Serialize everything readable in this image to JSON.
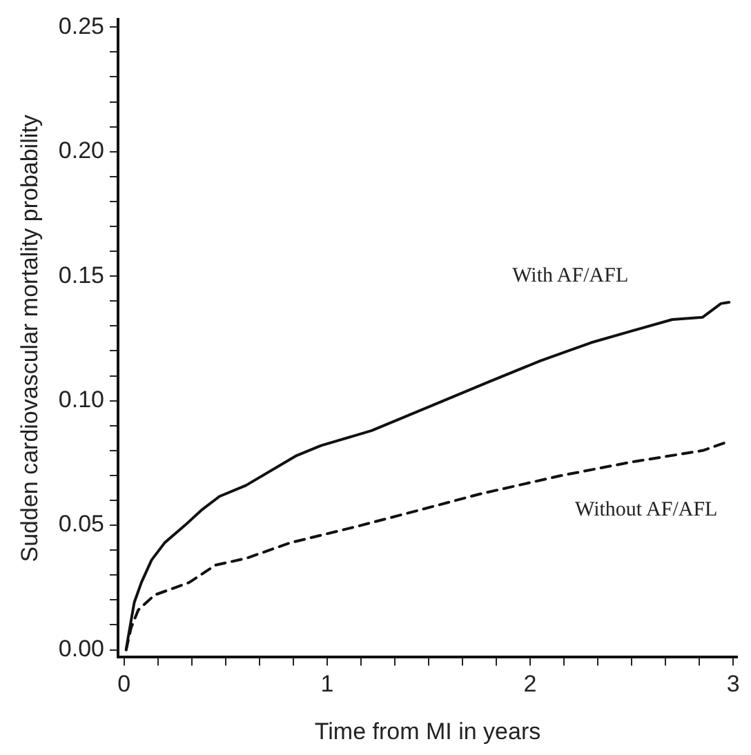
{
  "chart_data": {
    "type": "line",
    "xlabel": "Time from MI in years",
    "ylabel": "Sudden cardiovascular mortality probability",
    "xlim": [
      -0.03,
      3.02
    ],
    "ylim": [
      -0.003,
      0.253
    ],
    "xticks": [
      0,
      {
        "value": 0.1667,
        "label": null
      },
      {
        "value": 0.3333,
        "label": null
      },
      {
        "value": 0.5,
        "label": null
      },
      {
        "value": 0.6667,
        "label": null
      },
      {
        "value": 0.8333,
        "label": null
      },
      1,
      {
        "value": 1.1667,
        "label": null
      },
      {
        "value": 1.3333,
        "label": null
      },
      {
        "value": 1.5,
        "label": null
      },
      {
        "value": 1.6667,
        "label": null
      },
      {
        "value": 1.8333,
        "label": null
      },
      2,
      {
        "value": 2.1667,
        "label": null
      },
      {
        "value": 2.3333,
        "label": null
      },
      {
        "value": 2.5,
        "label": null
      },
      {
        "value": 2.6667,
        "label": null
      },
      {
        "value": 2.8333,
        "label": null
      },
      3
    ],
    "yticks": [
      {
        "value": 0,
        "label": "0.00"
      },
      {
        "value": 0.01,
        "label": null
      },
      {
        "value": 0.02,
        "label": null
      },
      {
        "value": 0.03,
        "label": null
      },
      {
        "value": 0.04,
        "label": null
      },
      {
        "value": 0.05,
        "label": "0.05"
      },
      {
        "value": 0.06,
        "label": null
      },
      {
        "value": 0.07,
        "label": null
      },
      {
        "value": 0.08,
        "label": null
      },
      {
        "value": 0.09,
        "label": null
      },
      {
        "value": 0.1,
        "label": "0.10"
      },
      {
        "value": 0.11,
        "label": null
      },
      {
        "value": 0.12,
        "label": null
      },
      {
        "value": 0.13,
        "label": null
      },
      {
        "value": 0.14,
        "label": null
      },
      {
        "value": 0.15,
        "label": "0.15"
      },
      {
        "value": 0.16,
        "label": null
      },
      {
        "value": 0.17,
        "label": null
      },
      {
        "value": 0.18,
        "label": null
      },
      {
        "value": 0.19,
        "label": null
      },
      {
        "value": 0.2,
        "label": "0.20"
      },
      {
        "value": 0.21,
        "label": null
      },
      {
        "value": 0.22,
        "label": null
      },
      {
        "value": 0.23,
        "label": null
      },
      {
        "value": 0.24,
        "label": null
      },
      {
        "value": 0.25,
        "label": "0.25"
      }
    ],
    "grid": false,
    "legend": false,
    "marker": "none",
    "series": [
      {
        "name": "With AF/AFL",
        "color": "#111111",
        "line_style": "solid",
        "x": [
          0.01,
          0.02,
          0.05,
          0.085,
          0.135,
          0.2,
          0.3,
          0.38,
          0.47,
          0.6,
          0.85,
          0.97,
          1.22,
          1.5,
          1.8,
          2.05,
          2.3,
          2.5,
          2.7,
          2.85,
          2.94,
          2.98
        ],
        "values": [
          0,
          0.005,
          0.019,
          0.027,
          0.036,
          0.043,
          0.05,
          0.056,
          0.0616,
          0.066,
          0.078,
          0.082,
          0.088,
          0.0975,
          0.1077,
          0.116,
          0.1233,
          0.128,
          0.1326,
          0.1335,
          0.139,
          0.1395
        ]
      },
      {
        "name": "Without AF/AFL",
        "color": "#111111",
        "line_style": "dashed",
        "x": [
          0.01,
          0.035,
          0.07,
          0.15,
          0.32,
          0.45,
          0.6,
          0.82,
          1.15,
          1.45,
          1.75,
          2.15,
          2.5,
          2.85,
          2.98
        ],
        "values": [
          0,
          0.009,
          0.016,
          0.022,
          0.027,
          0.034,
          0.0367,
          0.043,
          0.0496,
          0.056,
          0.0625,
          0.0699,
          0.0754,
          0.08,
          0.0837
        ]
      }
    ]
  }
}
